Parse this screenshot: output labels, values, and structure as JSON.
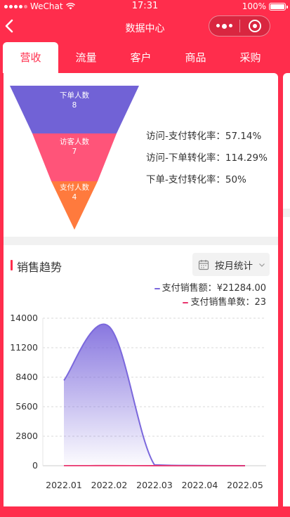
{
  "status_bar": {
    "carrier": "WeChat",
    "time": "17:31",
    "battery": "100%"
  },
  "nav": {
    "back_icon": "chevron-left-icon",
    "title": "数据中心"
  },
  "tabs": [
    {
      "label": "营收",
      "active": true
    },
    {
      "label": "流量",
      "active": false
    },
    {
      "label": "客户",
      "active": false
    },
    {
      "label": "商品",
      "active": false
    },
    {
      "label": "采购",
      "active": false
    }
  ],
  "funnel": {
    "stages": [
      {
        "label": "下单人数",
        "value": "8",
        "color": "#7162d6"
      },
      {
        "label": "访客人数",
        "value": "7",
        "color": "#ff5479"
      },
      {
        "label": "支付人数",
        "value": "4",
        "color": "#ff7a3d"
      }
    ],
    "rates": [
      {
        "label": "访问-支付转化率：",
        "value": "57.14%"
      },
      {
        "label": "访问-下单转化率：",
        "value": "114.29%"
      },
      {
        "label": "下单-支付转化率：",
        "value": "50%"
      }
    ]
  },
  "trend": {
    "title": "销售趋势",
    "filter_label": "按月统计",
    "legend": [
      {
        "label": "支付销售额：",
        "value": "¥21284.00",
        "color": "#7b68dc"
      },
      {
        "label": "支付销售单数：",
        "value": "23",
        "color": "#e8336d"
      }
    ]
  },
  "chart_data": {
    "type": "area",
    "x": [
      "2022.01",
      "2022.02",
      "2022.03",
      "2022.04",
      "2022.05"
    ],
    "y_ticks": [
      "0",
      "2800",
      "5600",
      "8400",
      "11200",
      "14000"
    ],
    "ylim": [
      0,
      14000
    ],
    "grid": true,
    "series": [
      {
        "name": "支付销售额",
        "color": "#7b68dc",
        "values": [
          8100,
          13200,
          80,
          20,
          0
        ]
      },
      {
        "name": "支付销售单数",
        "color": "#e8336d",
        "values": [
          7,
          12,
          3,
          1,
          0
        ]
      }
    ]
  }
}
